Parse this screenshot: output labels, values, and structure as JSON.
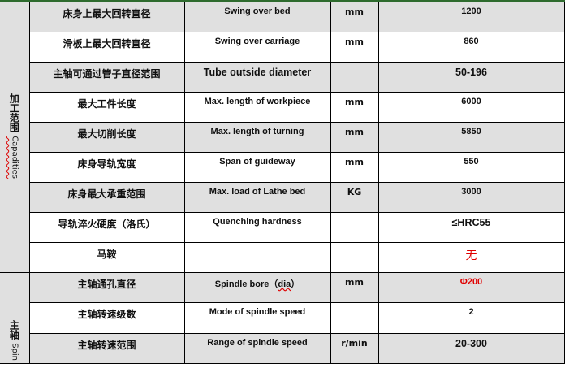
{
  "groups": [
    {
      "cn": "加工范围",
      "en": "Capadities"
    },
    {
      "cn": "主轴",
      "en": "Spin"
    }
  ],
  "rows": [
    {
      "cn": "床身上最大回转直径",
      "en": "Swing over bed",
      "unit": "mm",
      "value": "1200"
    },
    {
      "cn": "滑板上最大回转直径",
      "en": "Swing over carriage",
      "unit": "mm",
      "value": "860"
    },
    {
      "cn": "主轴可通过管子直径范围",
      "en": "Tube outside diameter",
      "unit": "",
      "value": "50-196"
    },
    {
      "cn": "最大工件长度",
      "en": "Max. length of workpiece",
      "unit": "mm",
      "value": "6000"
    },
    {
      "cn": "最大切削长度",
      "en": "Max. length of turning",
      "unit": "mm",
      "value": "5850"
    },
    {
      "cn": "床身导轨宽度",
      "en": "Span of guideway",
      "unit": "mm",
      "value": "550"
    },
    {
      "cn": "床身最大承重范围",
      "en": "Max. load of Lathe bed",
      "unit": "KG",
      "value": "3000"
    },
    {
      "cn": "导轨淬火硬度（洛氏）",
      "en": "Quenching hardness",
      "unit": "",
      "value": "≤HRC55"
    },
    {
      "cn": "马鞍",
      "en": "",
      "unit": "",
      "value": "无"
    },
    {
      "cn": "主轴通孔直径",
      "en": "Spindle bore（",
      "en_sq": "dia",
      "en_tail": "）",
      "unit": "mm",
      "value": "Φ200"
    },
    {
      "cn": "主轴转速级数",
      "en": "Mode of spindle speed",
      "unit": "",
      "value": "2"
    },
    {
      "cn": "主轴转速范围",
      "en": "Range of spindle speed",
      "unit": "r/min",
      "value": "20-300"
    }
  ],
  "colors": {
    "gray": "#e0e0e0",
    "red": "#e00000",
    "top_border": "#2e6b2e"
  }
}
